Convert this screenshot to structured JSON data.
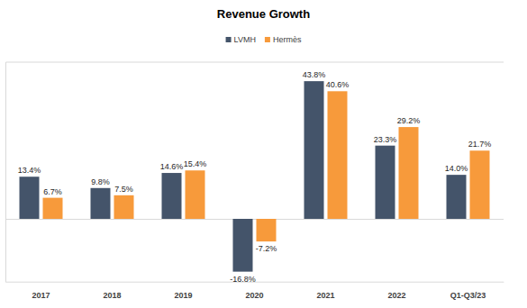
{
  "chart_data": {
    "type": "bar",
    "title": "Revenue Growth",
    "categories": [
      "2017",
      "2018",
      "2019",
      "2020",
      "2021",
      "2022",
      "Q1-Q3/23"
    ],
    "series": [
      {
        "name": "LVMH",
        "color": "#44546a",
        "values": [
          13.4,
          9.8,
          14.6,
          -16.8,
          43.8,
          23.3,
          14.0
        ],
        "value_labels": [
          "13.4%",
          "9.8%",
          "14.6%",
          "-16.8%",
          "43.8%",
          "23.3%",
          "14.0%"
        ]
      },
      {
        "name": "Hermès",
        "color": "#f79a3b",
        "values": [
          6.7,
          7.5,
          15.4,
          -7.2,
          40.6,
          29.2,
          21.7
        ],
        "value_labels": [
          "6.7%",
          "7.5%",
          "15.4%",
          "-7.2%",
          "40.6%",
          "29.2%",
          "21.7%"
        ]
      }
    ],
    "ylim": [
      -20,
      50
    ],
    "yticks": [
      0
    ],
    "grid": true,
    "legend": "top",
    "data_labels": true,
    "tick_labels": "x"
  }
}
